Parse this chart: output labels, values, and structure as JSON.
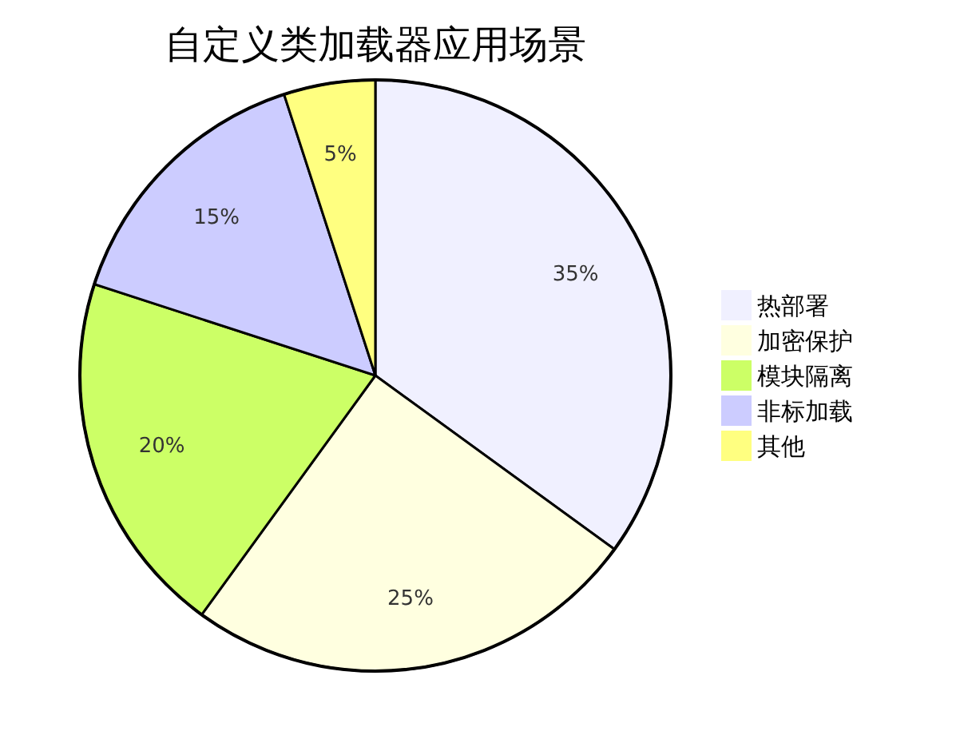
{
  "chart_data": {
    "type": "pie",
    "title": "自定义类加载器应用场景",
    "categories": [
      "热部署",
      "加密保护",
      "模块隔离",
      "非标加载",
      "其他"
    ],
    "values": [
      35,
      25,
      20,
      15,
      5
    ],
    "colors": [
      "#f0f0ff",
      "#ffffe0",
      "#ccff66",
      "#ccccff",
      "#ffff80"
    ],
    "value_labels": [
      "35%",
      "25%",
      "20%",
      "15%",
      "5%"
    ],
    "legend": "right"
  }
}
